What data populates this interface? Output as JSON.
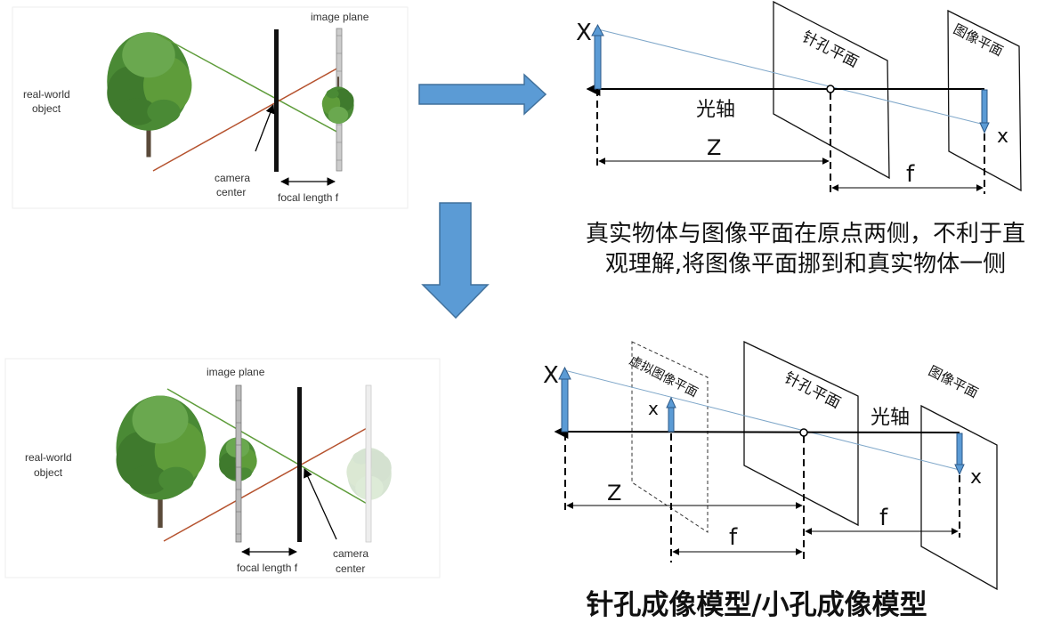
{
  "panel_top_left": {
    "object_label_line1": "real-world",
    "object_label_line2": "object",
    "plane_label": "image plane",
    "camera_label_line1": "camera",
    "camera_label_line2": "center",
    "focal_label": "focal length f"
  },
  "panel_bottom_left": {
    "object_label_line1": "real-world",
    "object_label_line2": "object",
    "plane_label": "image plane",
    "camera_label_line1": "camera",
    "camera_label_line2": "center",
    "focal_label": "focal length f"
  },
  "panel_top_right": {
    "object_symbol": "X",
    "image_symbol": "x",
    "pinhole_plane_label": "针孔平面",
    "image_plane_label": "图像平面",
    "axis_label": "光轴",
    "distance_label": "Z",
    "focal_label": "f"
  },
  "panel_bottom_right": {
    "object_symbol": "X",
    "virtual_image_symbol": "x",
    "image_symbol": "x",
    "virtual_plane_label": "虚拟图像平面",
    "pinhole_plane_label": "针孔平面",
    "image_plane_label": "图像平面",
    "axis_label": "光轴",
    "distance_label": "Z",
    "focal_label_left": "f",
    "focal_label_right": "f"
  },
  "captions": {
    "explanation_line1": "真实物体与图像平面在原点两侧，不利于直",
    "explanation_line2": "观理解,将图像平面挪到和真实物体一侧",
    "title": "针孔成像模型/小孔成像模型"
  },
  "colors": {
    "arrow_fill": "#5b9bd5",
    "arrow_stroke": "#41719c",
    "green_ray": "#5e9c3a",
    "red_ray": "#b5522e",
    "tree_dark": "#3f7a2d",
    "tree_light": "#6aa84f"
  }
}
